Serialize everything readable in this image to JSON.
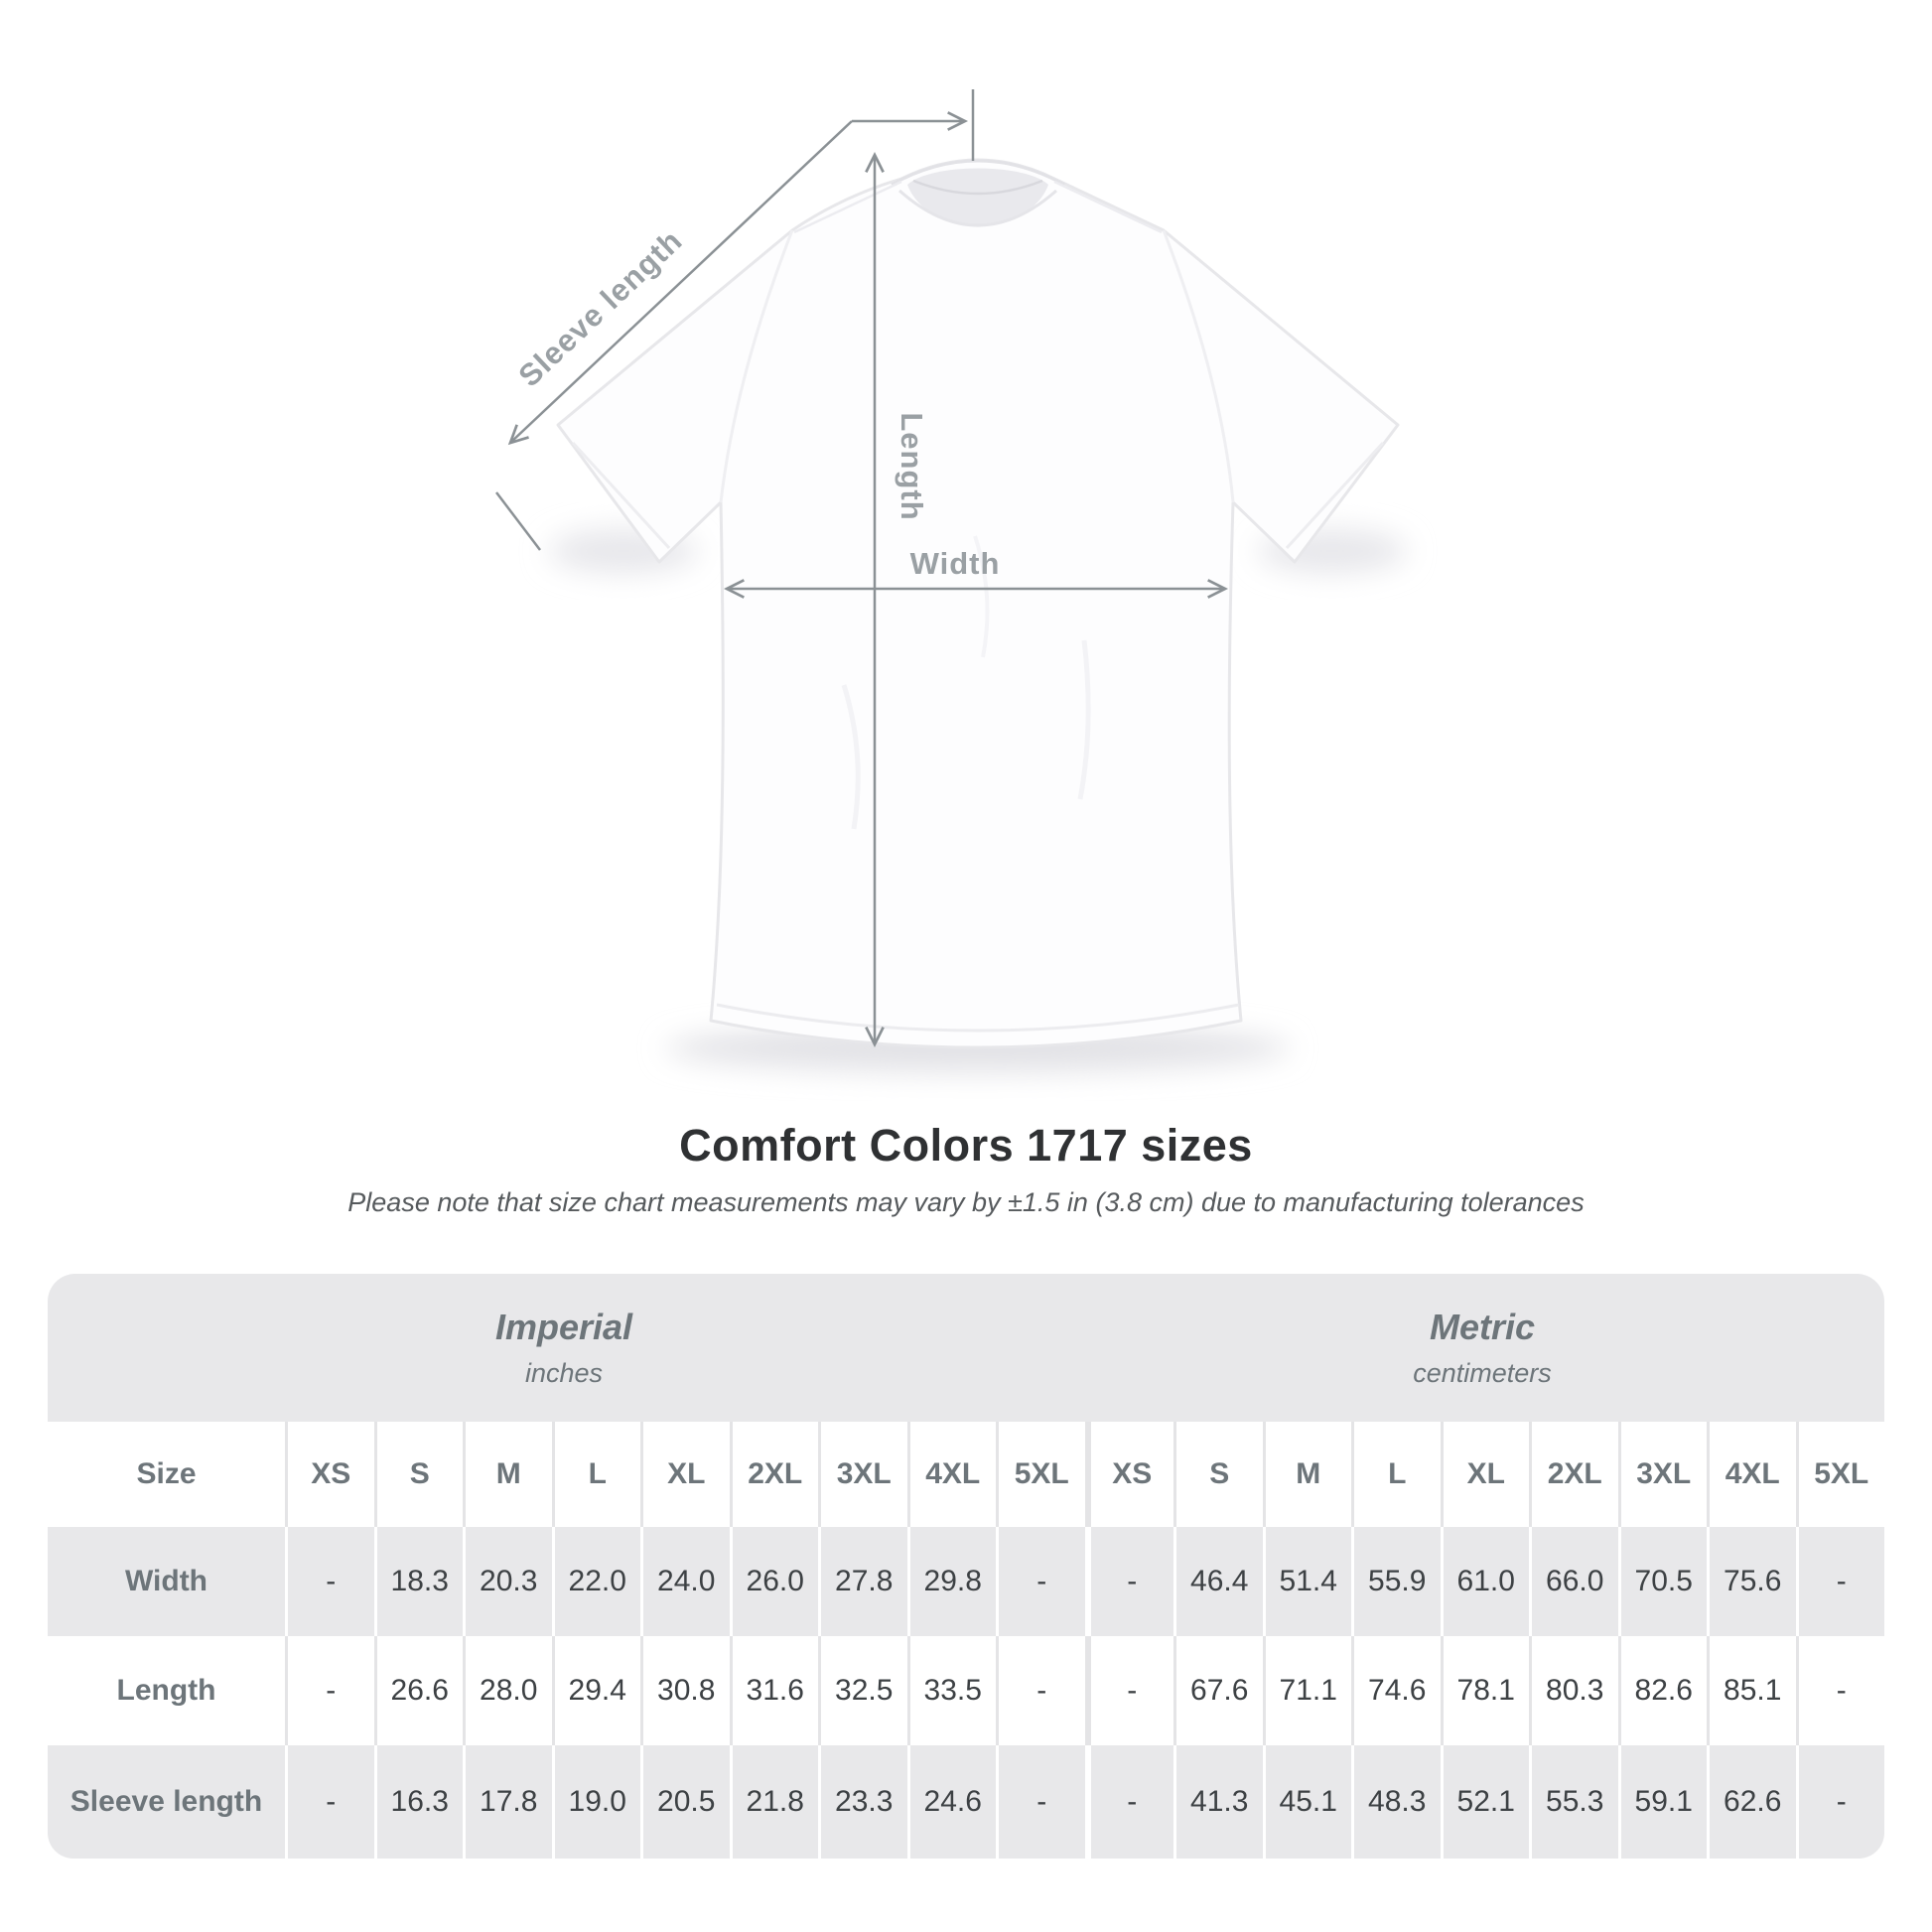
{
  "title": "Comfort Colors 1717 sizes",
  "subtitle": "Please note that size chart measurements may vary by ±1.5 in (3.8 cm) due to manufacturing tolerances",
  "diagram": {
    "sleeve_label": "Sleeve length",
    "length_label": "Length",
    "width_label": "Width"
  },
  "table": {
    "size_header": "Size",
    "unit_groups": [
      {
        "label": "Imperial",
        "sublabel": "inches"
      },
      {
        "label": "Metric",
        "sublabel": "centimeters"
      }
    ],
    "sizes": [
      "XS",
      "S",
      "M",
      "L",
      "XL",
      "2XL",
      "3XL",
      "4XL",
      "5XL"
    ],
    "rows": [
      {
        "label": "Width",
        "imperial": [
          "-",
          "18.3",
          "20.3",
          "22.0",
          "24.0",
          "26.0",
          "27.8",
          "29.8",
          "-"
        ],
        "metric": [
          "-",
          "46.4",
          "51.4",
          "55.9",
          "61.0",
          "66.0",
          "70.5",
          "75.6",
          "-"
        ]
      },
      {
        "label": "Length",
        "imperial": [
          "-",
          "26.6",
          "28.0",
          "29.4",
          "30.8",
          "31.6",
          "32.5",
          "33.5",
          "-"
        ],
        "metric": [
          "-",
          "67.6",
          "71.1",
          "74.6",
          "78.1",
          "80.3",
          "82.6",
          "85.1",
          "-"
        ]
      },
      {
        "label": "Sleeve length",
        "imperial": [
          "-",
          "16.3",
          "17.8",
          "19.0",
          "20.5",
          "21.8",
          "23.3",
          "24.6",
          "-"
        ],
        "metric": [
          "-",
          "41.3",
          "45.1",
          "48.3",
          "52.1",
          "55.3",
          "59.1",
          "62.6",
          "-"
        ]
      }
    ]
  },
  "colors": {
    "line_gray": "#8b9195",
    "label_gray": "#9aa0a4",
    "band_gray": "#e8e8ea",
    "header_text": "#6d757a",
    "value_text": "#3d4144",
    "title_text": "#2f3133",
    "subtitle_text": "#565a5d"
  }
}
